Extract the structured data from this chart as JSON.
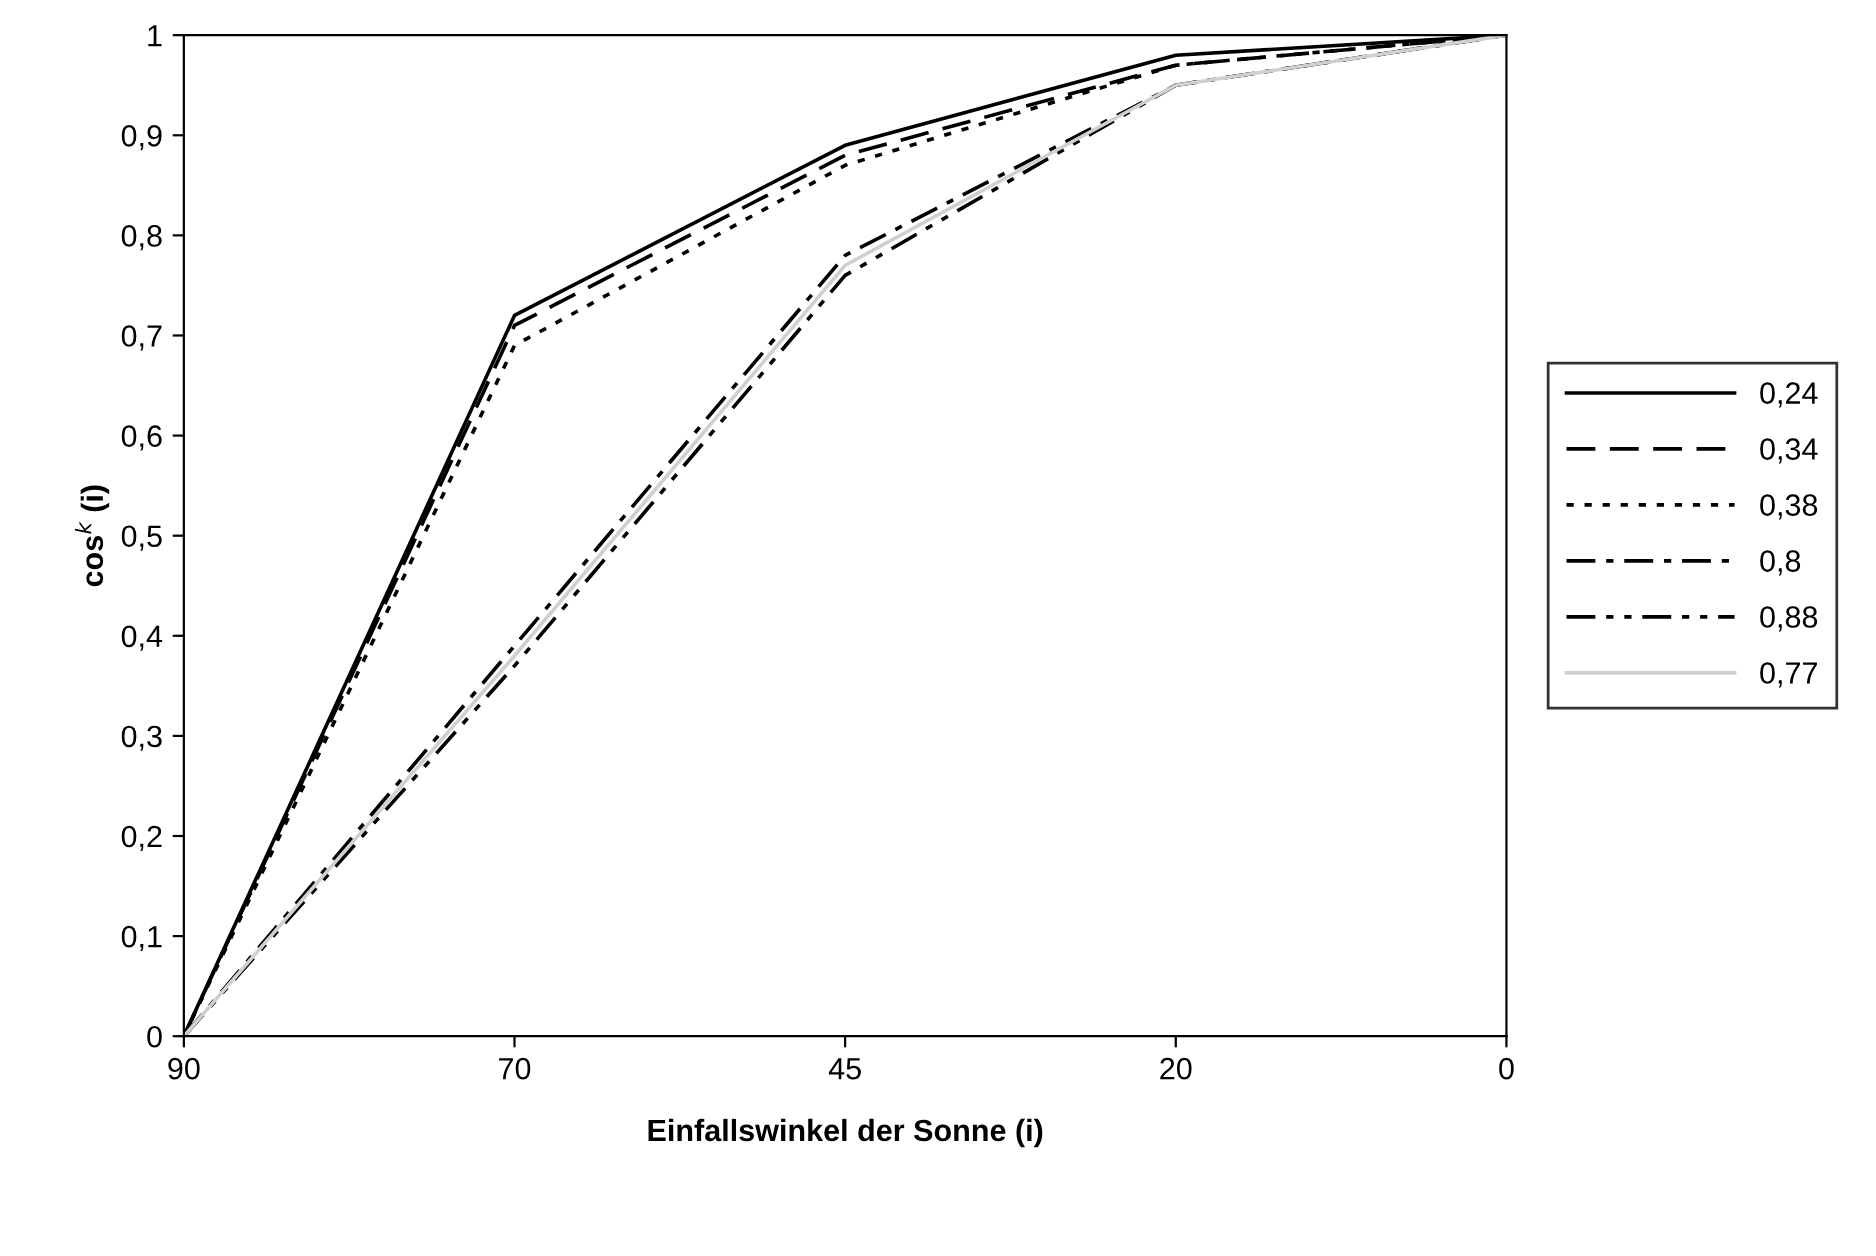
{
  "chart_data": {
    "type": "line",
    "xlabel": "Einfallswinkel der Sonne (i)",
    "ylabel": "cos$^{k}$ (i)",
    "categories": [
      "90",
      "70",
      "45",
      "20",
      "0"
    ],
    "series": [
      {
        "name": "0,24",
        "color": "#000000",
        "line_style": "solid",
        "values": [
          0,
          0.72,
          0.89,
          0.98,
          1
        ]
      },
      {
        "name": "0,34",
        "color": "#000000",
        "line_style": "dashed",
        "values": [
          0,
          0.71,
          0.88,
          0.97,
          1
        ]
      },
      {
        "name": "0,38",
        "color": "#000000",
        "line_style": "dotted",
        "values": [
          0,
          0.69,
          0.87,
          0.97,
          1
        ]
      },
      {
        "name": "0,8",
        "color": "#000000",
        "line_style": "dashdot",
        "values": [
          0,
          0.39,
          0.78,
          0.95,
          1
        ]
      },
      {
        "name": "0,88",
        "color": "#000000",
        "line_style": "dashdotdot",
        "values": [
          0,
          0.37,
          0.76,
          0.95,
          1
        ]
      },
      {
        "name": "0,77",
        "color": "#d0d0d0",
        "line_style": "solid",
        "values": [
          0,
          0.38,
          0.77,
          0.95,
          1
        ]
      }
    ],
    "ylim": [
      0,
      1
    ],
    "yticks": [
      0,
      {
        "value": 0.1,
        "label": "0,1"
      },
      {
        "value": 0.2,
        "label": "0,2"
      },
      {
        "value": 0.3,
        "label": "0,3"
      },
      {
        "value": 0.4,
        "label": "0,4"
      },
      {
        "value": 0.5,
        "label": "0,5"
      },
      {
        "value": 0.6,
        "label": "0,6"
      },
      {
        "value": 0.7,
        "label": "0,7"
      },
      {
        "value": 0.8,
        "label": "0,8"
      },
      {
        "value": 0.9,
        "label": "0,9"
      },
      1
    ],
    "legend": "right",
    "grid": false
  }
}
